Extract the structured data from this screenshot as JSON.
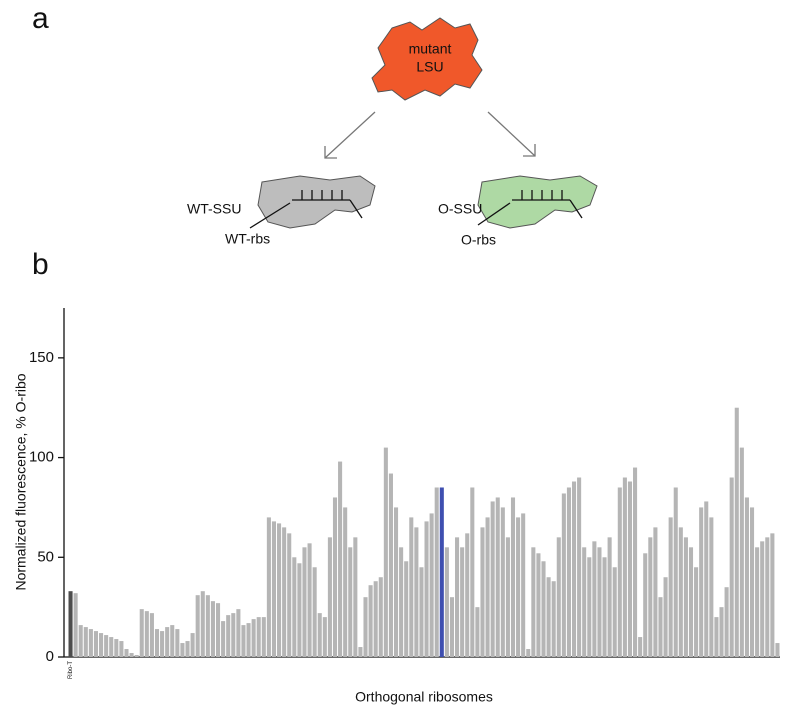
{
  "panel_a": {
    "label": "a",
    "lsu_label": [
      "mutant",
      "LSU"
    ],
    "wt_ssu": "WT-SSU",
    "wt_rbs": "WT-rbs",
    "o_ssu": "O-SSU",
    "o_rbs": "O-rbs"
  },
  "chart_data": {
    "type": "bar",
    "panel_label": "b",
    "ylabel": "Normalized fluorescence, % O-ribo",
    "xlabel": "Orthogonal ribosomes",
    "ylim": [
      0,
      175
    ],
    "yticks": [
      0,
      50,
      100,
      150
    ],
    "categories": [
      "Ribo-T",
      null,
      null,
      null,
      null,
      null,
      null,
      null,
      null,
      null,
      null,
      null,
      null,
      null,
      null,
      null,
      null,
      null,
      null,
      null,
      null,
      null,
      null,
      null,
      null,
      null,
      null,
      null,
      null,
      null,
      null,
      null,
      null,
      null,
      null,
      null,
      null,
      null,
      null,
      null,
      null,
      null,
      null,
      null,
      null,
      null,
      null,
      null,
      null,
      null,
      null,
      null,
      null,
      null,
      null,
      null,
      null,
      null,
      null,
      null,
      null,
      null,
      null,
      null,
      null,
      null,
      null,
      null,
      null,
      null,
      null,
      null,
      null,
      null,
      null,
      null,
      null,
      null,
      null,
      null,
      null,
      null,
      null,
      null,
      null,
      null,
      null,
      null,
      null,
      null,
      null,
      null,
      null,
      null,
      null,
      null,
      null,
      null,
      null,
      null,
      null,
      null,
      null,
      null,
      null,
      null,
      null,
      null,
      null,
      null,
      null,
      null,
      null,
      null,
      null,
      null,
      null,
      null,
      null,
      null,
      null,
      null,
      null,
      null,
      null,
      null,
      null,
      null,
      null,
      null,
      null,
      null,
      null,
      null,
      null,
      null,
      null,
      null,
      null,
      null
    ],
    "values": [
      33,
      32,
      16,
      15,
      14,
      13,
      12,
      11,
      10,
      9,
      8,
      4,
      2,
      1,
      24,
      23,
      22,
      14,
      13,
      15,
      16,
      14,
      7,
      8,
      12,
      31,
      33,
      31,
      28,
      27,
      18,
      21,
      22,
      24,
      16,
      17,
      19,
      20,
      20,
      70,
      68,
      67,
      65,
      62,
      50,
      47,
      55,
      57,
      45,
      22,
      20,
      60,
      80,
      98,
      75,
      55,
      60,
      5,
      30,
      36,
      38,
      40,
      105,
      92,
      75,
      55,
      48,
      70,
      65,
      45,
      68,
      72,
      85,
      85,
      55,
      30,
      60,
      55,
      62,
      85,
      25,
      65,
      70,
      78,
      80,
      75,
      60,
      80,
      70,
      72,
      4,
      55,
      52,
      48,
      40,
      38,
      60,
      82,
      85,
      88,
      90,
      55,
      50,
      58,
      55,
      50,
      60,
      45,
      85,
      90,
      88,
      95,
      10,
      52,
      60,
      65,
      30,
      40,
      70,
      85,
      65,
      60,
      55,
      45,
      75,
      78,
      70,
      20,
      25,
      35,
      90,
      125,
      105,
      80,
      75,
      55,
      58,
      60,
      62,
      7
    ],
    "colors": [
      "#4d4d4d",
      "#b5b5b5",
      "#b5b5b5",
      "#b5b5b5",
      "#b5b5b5",
      "#b5b5b5",
      "#b5b5b5",
      "#b5b5b5",
      "#b5b5b5",
      "#b5b5b5",
      "#b5b5b5",
      "#b5b5b5",
      "#b5b5b5",
      "#b5b5b5",
      "#b5b5b5",
      "#b5b5b5",
      "#b5b5b5",
      "#b5b5b5",
      "#b5b5b5",
      "#b5b5b5",
      "#b5b5b5",
      "#b5b5b5",
      "#b5b5b5",
      "#b5b5b5",
      "#b5b5b5",
      "#b5b5b5",
      "#b5b5b5",
      "#b5b5b5",
      "#b5b5b5",
      "#b5b5b5",
      "#b5b5b5",
      "#b5b5b5",
      "#b5b5b5",
      "#b5b5b5",
      "#b5b5b5",
      "#b5b5b5",
      "#b5b5b5",
      "#b5b5b5",
      "#b5b5b5",
      "#b5b5b5",
      "#b5b5b5",
      "#b5b5b5",
      "#b5b5b5",
      "#b5b5b5",
      "#b5b5b5",
      "#b5b5b5",
      "#b5b5b5",
      "#b5b5b5",
      "#b5b5b5",
      "#b5b5b5",
      "#b5b5b5",
      "#b5b5b5",
      "#b5b5b5",
      "#b5b5b5",
      "#b5b5b5",
      "#b5b5b5",
      "#b5b5b5",
      "#b5b5b5",
      "#b5b5b5",
      "#b5b5b5",
      "#b5b5b5",
      "#b5b5b5",
      "#b5b5b5",
      "#b5b5b5",
      "#b5b5b5",
      "#b5b5b5",
      "#b5b5b5",
      "#b5b5b5",
      "#b5b5b5",
      "#b5b5b5",
      "#b5b5b5",
      "#b5b5b5",
      "#b5b5b5",
      "#3f4fb0",
      "#b5b5b5",
      "#b5b5b5",
      "#b5b5b5",
      "#b5b5b5",
      "#b5b5b5",
      "#b5b5b5",
      "#b5b5b5",
      "#b5b5b5",
      "#b5b5b5",
      "#b5b5b5",
      "#b5b5b5",
      "#b5b5b5",
      "#b5b5b5",
      "#b5b5b5",
      "#b5b5b5",
      "#b5b5b5",
      "#b5b5b5",
      "#b5b5b5",
      "#b5b5b5",
      "#b5b5b5",
      "#b5b5b5",
      "#b5b5b5",
      "#b5b5b5",
      "#b5b5b5",
      "#b5b5b5",
      "#b5b5b5",
      "#b5b5b5",
      "#b5b5b5",
      "#b5b5b5",
      "#b5b5b5",
      "#b5b5b5",
      "#b5b5b5",
      "#b5b5b5",
      "#b5b5b5",
      "#b5b5b5",
      "#b5b5b5",
      "#b5b5b5",
      "#b5b5b5",
      "#b5b5b5",
      "#b5b5b5",
      "#b5b5b5",
      "#b5b5b5",
      "#b5b5b5",
      "#b5b5b5",
      "#b5b5b5",
      "#b5b5b5",
      "#b5b5b5",
      "#b5b5b5",
      "#b5b5b5",
      "#b5b5b5",
      "#b5b5b5",
      "#b5b5b5",
      "#b5b5b5",
      "#b5b5b5",
      "#b5b5b5",
      "#b5b5b5",
      "#b5b5b5",
      "#b5b5b5",
      "#b5b5b5",
      "#b5b5b5",
      "#b5b5b5",
      "#b5b5b5",
      "#b5b5b5",
      "#b5b5b5",
      "#b5b5b5",
      "#b5b5b5"
    ]
  }
}
